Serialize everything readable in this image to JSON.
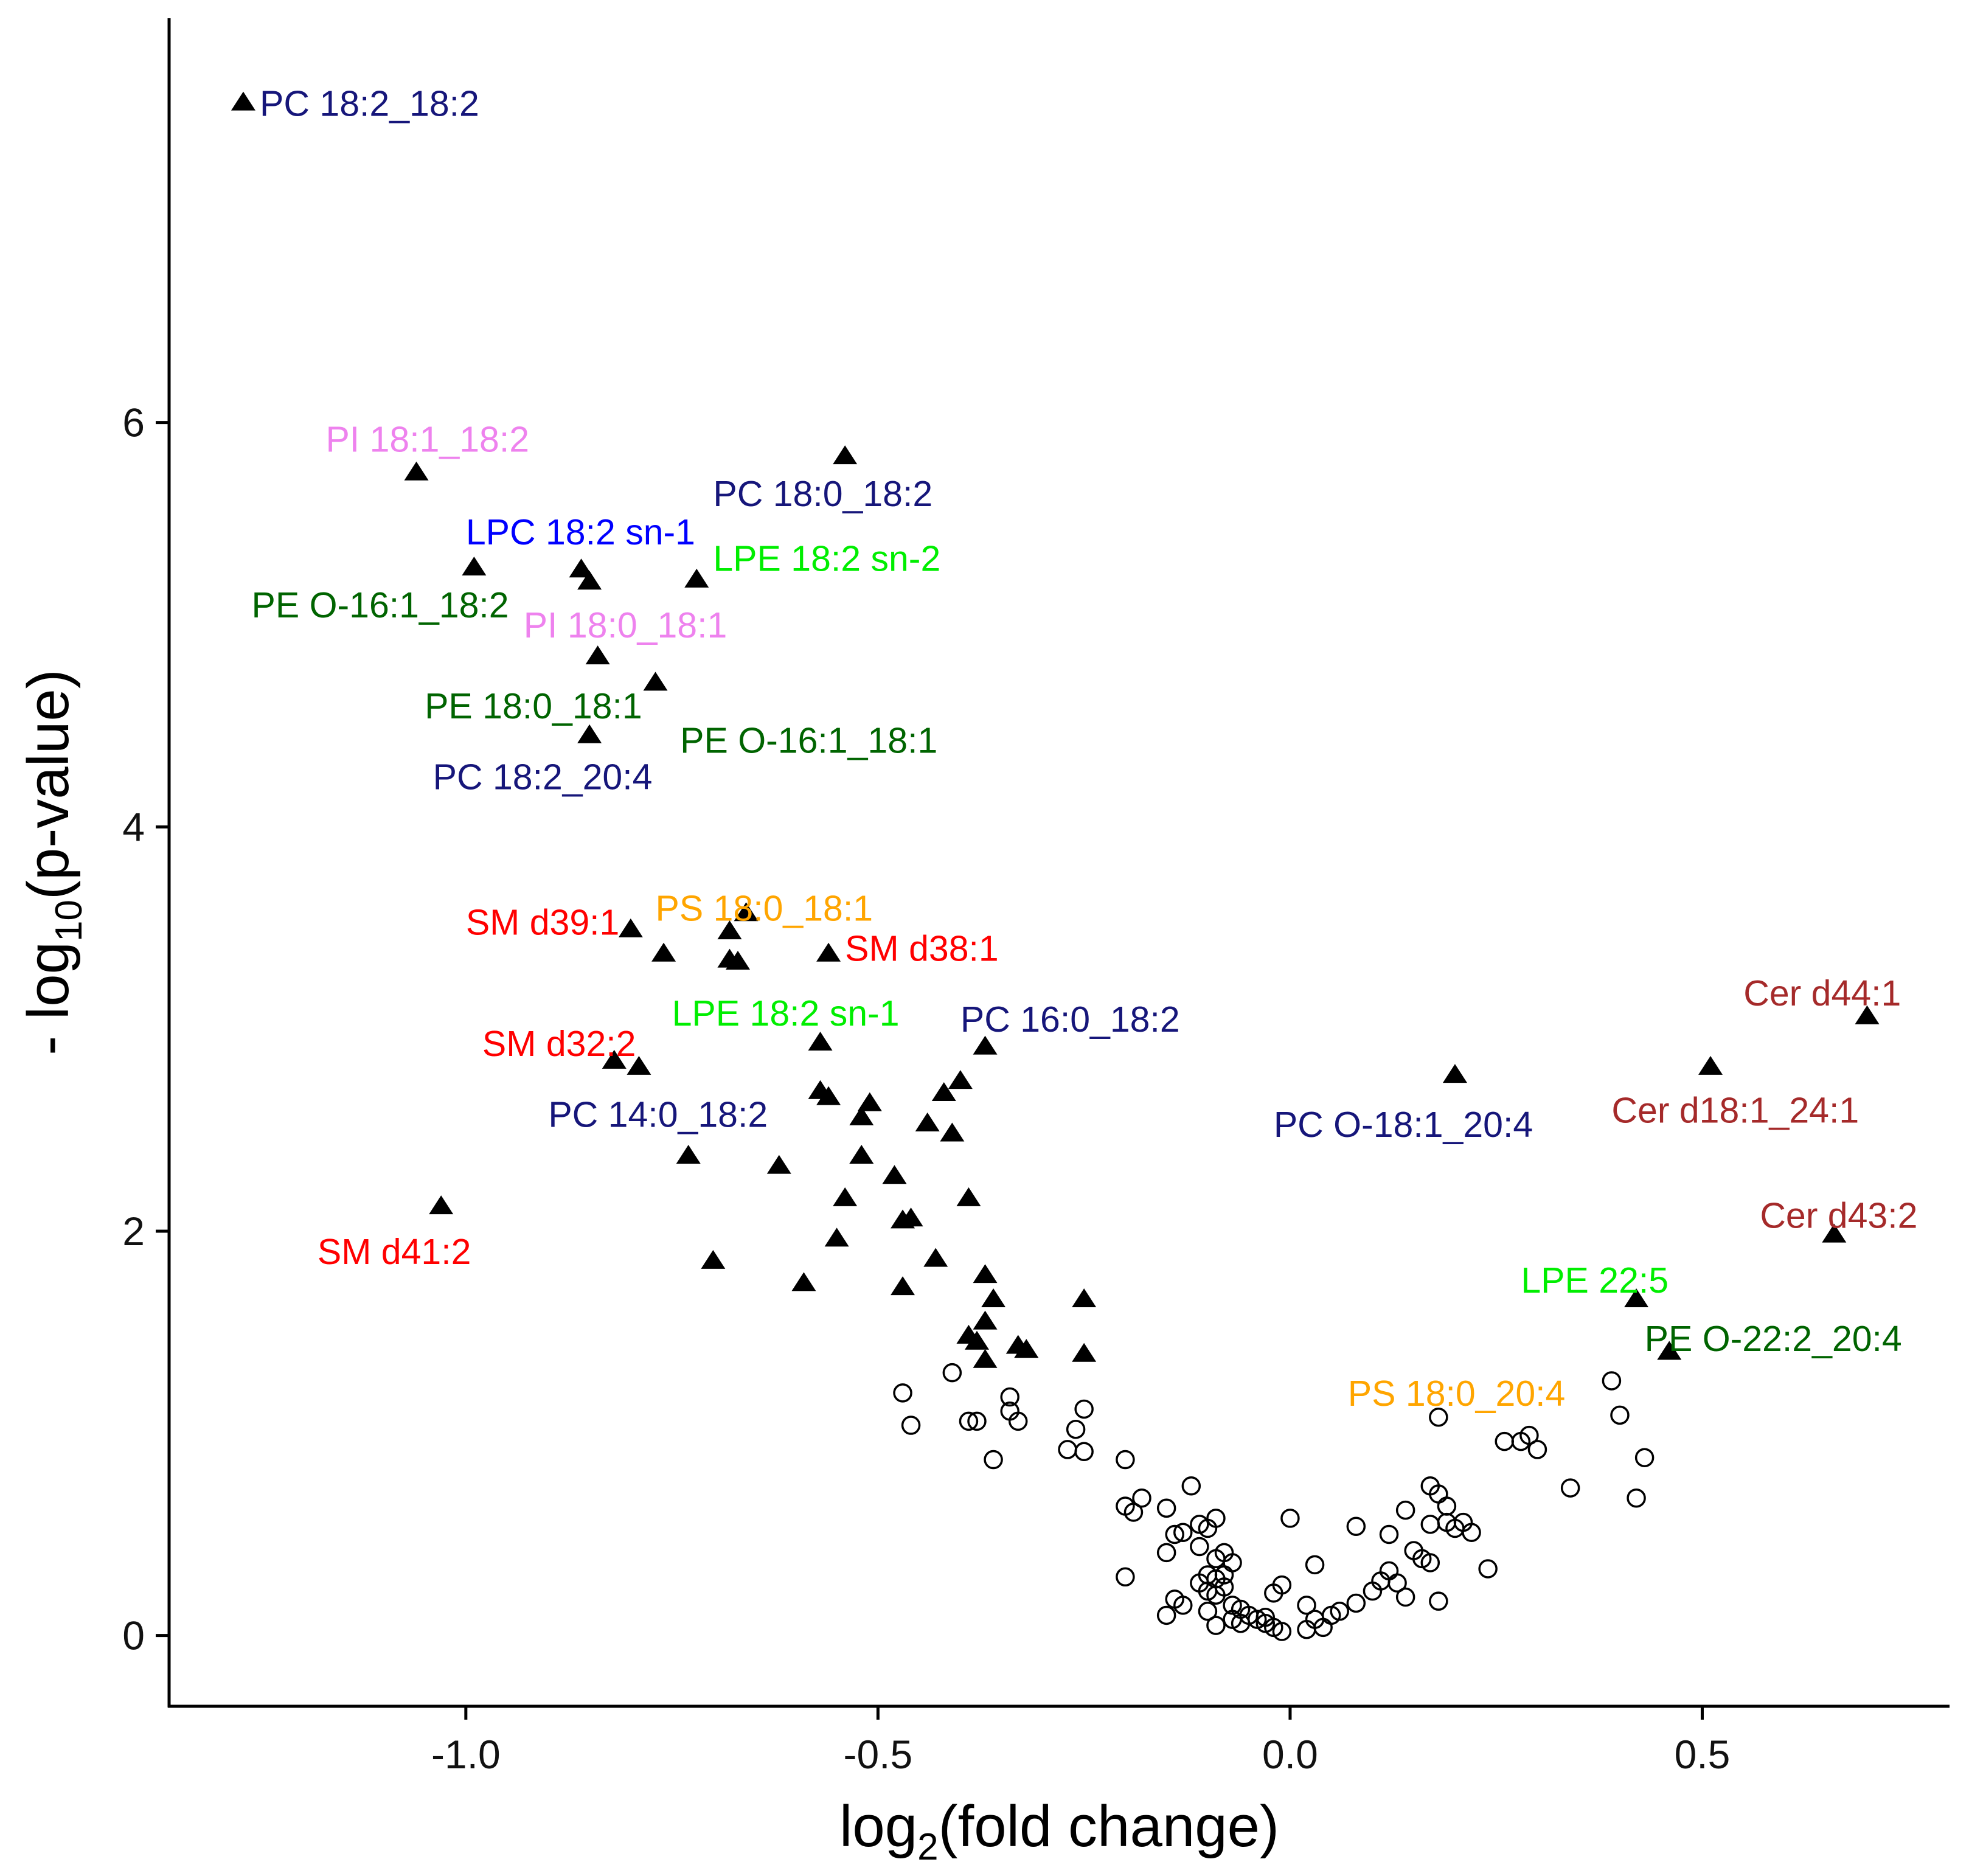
{
  "chart_data": {
    "type": "scatter",
    "title": "",
    "xlabel": {
      "main": "log",
      "sub": "2",
      "rest": "(fold change)"
    },
    "ylabel": {
      "main": "- log",
      "sub": "10",
      "rest": "(p-value)"
    },
    "xlim": [
      -1.36,
      0.8
    ],
    "ylim": [
      -0.35,
      8.0
    ],
    "xticks": [
      {
        "value": -1.0,
        "label": "-1.0"
      },
      {
        "value": -0.5,
        "label": "-0.5"
      },
      {
        "value": 0.0,
        "label": "0.0"
      },
      {
        "value": 0.5,
        "label": "0.5"
      }
    ],
    "yticks": [
      {
        "value": 0,
        "label": "0"
      },
      {
        "value": 2,
        "label": "2"
      },
      {
        "value": 4,
        "label": "4"
      },
      {
        "value": 6,
        "label": "6"
      }
    ],
    "grid": false,
    "legend": "none",
    "series": [
      {
        "marker": "filled-triangle",
        "color": "#000000",
        "points": [
          [
            -1.27,
            7.58
          ],
          [
            -1.06,
            5.75
          ],
          [
            -0.99,
            5.28
          ],
          [
            -0.86,
            5.27
          ],
          [
            -0.85,
            5.21
          ],
          [
            -0.72,
            5.22
          ],
          [
            -0.54,
            5.83
          ],
          [
            -0.84,
            4.84
          ],
          [
            -0.77,
            4.71
          ],
          [
            -0.85,
            4.45
          ],
          [
            -0.8,
            3.49
          ],
          [
            -0.76,
            3.37
          ],
          [
            -0.68,
            3.48
          ],
          [
            -0.66,
            3.57
          ],
          [
            -0.68,
            3.34
          ],
          [
            -0.67,
            3.33
          ],
          [
            -0.56,
            3.37
          ],
          [
            -0.57,
            2.93
          ],
          [
            -0.82,
            2.84
          ],
          [
            -0.79,
            2.81
          ],
          [
            -0.57,
            2.69
          ],
          [
            -0.56,
            2.66
          ],
          [
            -0.51,
            2.63
          ],
          [
            -0.52,
            2.56
          ],
          [
            -0.37,
            2.91
          ],
          [
            -0.4,
            2.74
          ],
          [
            -0.42,
            2.68
          ],
          [
            -0.44,
            2.53
          ],
          [
            -0.41,
            2.48
          ],
          [
            -0.73,
            2.37
          ],
          [
            -0.62,
            2.32
          ],
          [
            -0.52,
            2.37
          ],
          [
            -0.48,
            2.27
          ],
          [
            -0.54,
            2.16
          ],
          [
            -0.39,
            2.16
          ],
          [
            -1.03,
            2.12
          ],
          [
            -0.47,
            2.05
          ],
          [
            -0.46,
            2.06
          ],
          [
            -0.55,
            1.96
          ],
          [
            -0.7,
            1.85
          ],
          [
            -0.43,
            1.86
          ],
          [
            -0.59,
            1.74
          ],
          [
            -0.47,
            1.72
          ],
          [
            -0.37,
            1.78
          ],
          [
            -0.36,
            1.66
          ],
          [
            -0.25,
            1.66
          ],
          [
            -0.37,
            1.55
          ],
          [
            -0.39,
            1.48
          ],
          [
            -0.38,
            1.45
          ],
          [
            -0.33,
            1.43
          ],
          [
            -0.32,
            1.41
          ],
          [
            -0.25,
            1.39
          ],
          [
            -0.37,
            1.36
          ],
          [
            0.2,
            2.77
          ],
          [
            0.51,
            2.81
          ],
          [
            0.7,
            3.06
          ],
          [
            0.66,
            1.98
          ],
          [
            0.42,
            1.66
          ],
          [
            0.46,
            1.4
          ]
        ]
      },
      {
        "marker": "open-circle",
        "color": "#000000",
        "points": [
          [
            -0.47,
            1.2
          ],
          [
            -0.46,
            1.04
          ],
          [
            -0.41,
            1.3
          ],
          [
            -0.39,
            1.06
          ],
          [
            -0.38,
            1.06
          ],
          [
            -0.34,
            1.18
          ],
          [
            -0.34,
            1.11
          ],
          [
            -0.33,
            1.06
          ],
          [
            -0.36,
            0.87
          ],
          [
            -0.25,
            1.12
          ],
          [
            -0.26,
            1.02
          ],
          [
            -0.27,
            0.92
          ],
          [
            -0.25,
            0.91
          ],
          [
            -0.2,
            0.87
          ],
          [
            -0.2,
            0.64
          ],
          [
            -0.19,
            0.61
          ],
          [
            -0.18,
            0.68
          ],
          [
            -0.15,
            0.63
          ],
          [
            -0.14,
            0.5
          ],
          [
            -0.13,
            0.51
          ],
          [
            -0.12,
            0.74
          ],
          [
            -0.11,
            0.55
          ],
          [
            -0.1,
            0.53
          ],
          [
            -0.09,
            0.58
          ],
          [
            -0.11,
            0.44
          ],
          [
            -0.15,
            0.41
          ],
          [
            -0.08,
            0.41
          ],
          [
            -0.09,
            0.38
          ],
          [
            -0.07,
            0.36
          ],
          [
            -0.1,
            0.3
          ],
          [
            -0.09,
            0.28
          ],
          [
            -0.11,
            0.26
          ],
          [
            -0.08,
            0.3
          ],
          [
            -0.1,
            0.22
          ],
          [
            -0.08,
            0.24
          ],
          [
            -0.09,
            0.2
          ],
          [
            -0.07,
            0.15
          ],
          [
            -0.1,
            0.12
          ],
          [
            -0.06,
            0.13
          ],
          [
            -0.05,
            0.1
          ],
          [
            -0.04,
            0.08
          ],
          [
            -0.03,
            0.06
          ],
          [
            -0.02,
            0.04
          ],
          [
            -0.01,
            0.02
          ],
          [
            -0.03,
            0.09
          ],
          [
            -0.06,
            0.06
          ],
          [
            -0.07,
            0.08
          ],
          [
            -0.09,
            0.05
          ],
          [
            -0.13,
            0.15
          ],
          [
            -0.14,
            0.18
          ],
          [
            -0.15,
            0.1
          ],
          [
            -0.2,
            0.29
          ],
          [
            -0.01,
            0.25
          ],
          [
            -0.02,
            0.21
          ],
          [
            0.0,
            0.58
          ],
          [
            0.02,
            0.03
          ],
          [
            0.02,
            0.15
          ],
          [
            0.03,
            0.08
          ],
          [
            0.04,
            0.04
          ],
          [
            0.05,
            0.1
          ],
          [
            0.03,
            0.35
          ],
          [
            0.06,
            0.12
          ],
          [
            0.08,
            0.16
          ],
          [
            0.08,
            0.54
          ],
          [
            0.1,
            0.22
          ],
          [
            0.11,
            0.27
          ],
          [
            0.12,
            0.32
          ],
          [
            0.12,
            0.5
          ],
          [
            0.13,
            0.26
          ],
          [
            0.14,
            0.19
          ],
          [
            0.14,
            0.62
          ],
          [
            0.15,
            0.42
          ],
          [
            0.16,
            0.38
          ],
          [
            0.17,
            0.36
          ],
          [
            0.17,
            0.74
          ],
          [
            0.18,
            0.7
          ],
          [
            0.19,
            0.64
          ],
          [
            0.17,
            0.55
          ],
          [
            0.19,
            0.56
          ],
          [
            0.2,
            0.53
          ],
          [
            0.21,
            0.56
          ],
          [
            0.22,
            0.51
          ],
          [
            0.18,
            0.17
          ],
          [
            0.24,
            0.33
          ],
          [
            0.18,
            1.08
          ],
          [
            0.26,
            0.96
          ],
          [
            0.28,
            0.96
          ],
          [
            0.29,
            0.99
          ],
          [
            0.3,
            0.92
          ],
          [
            0.34,
            0.73
          ],
          [
            0.39,
            1.26
          ],
          [
            0.4,
            1.09
          ],
          [
            0.43,
            0.88
          ],
          [
            0.42,
            0.68
          ]
        ]
      }
    ],
    "annotations": [
      {
        "text": "PC 18:2_18:2",
        "x": -1.25,
        "y": 7.58,
        "anchor": "start",
        "color": "#16167a"
      },
      {
        "text": "PI 18:1_18:2",
        "x": -1.17,
        "y": 5.92,
        "anchor": "start",
        "color": "#ee82ee"
      },
      {
        "text": "PC 18:0_18:2",
        "x": -0.7,
        "y": 5.65,
        "anchor": "start",
        "color": "#16167a"
      },
      {
        "text": "LPC 18:2 sn-1",
        "x": -1.0,
        "y": 5.46,
        "anchor": "start",
        "color": "#0000ff"
      },
      {
        "text": "LPE 18:2 sn-2",
        "x": -0.7,
        "y": 5.33,
        "anchor": "start",
        "color": "#00ee00"
      },
      {
        "text": "PE O-16:1_18:2",
        "x": -1.26,
        "y": 5.1,
        "anchor": "start",
        "color": "#006400"
      },
      {
        "text": "PI 18:0_18:1",
        "x": -0.93,
        "y": 5.0,
        "anchor": "start",
        "color": "#ee82ee"
      },
      {
        "text": "PE 18:0_18:1",
        "x": -1.05,
        "y": 4.6,
        "anchor": "start",
        "color": "#006400"
      },
      {
        "text": "PE O-16:1_18:1",
        "x": -0.74,
        "y": 4.43,
        "anchor": "start",
        "color": "#006400"
      },
      {
        "text": "PC 18:2_20:4",
        "x": -1.04,
        "y": 4.25,
        "anchor": "start",
        "color": "#16167a"
      },
      {
        "text": "SM d39:1",
        "x": -1.0,
        "y": 3.53,
        "anchor": "start",
        "color": "#ff0000"
      },
      {
        "text": "PS 18:0_18:1",
        "x": -0.77,
        "y": 3.6,
        "anchor": "start",
        "color": "#ffa500"
      },
      {
        "text": "SM d38:1",
        "x": -0.54,
        "y": 3.4,
        "anchor": "start",
        "color": "#ff0000"
      },
      {
        "text": "LPE 18:2 sn-1",
        "x": -0.75,
        "y": 3.08,
        "anchor": "start",
        "color": "#00ee00"
      },
      {
        "text": "PC 16:0_18:2",
        "x": -0.4,
        "y": 3.05,
        "anchor": "start",
        "color": "#16167a"
      },
      {
        "text": "SM d32:2",
        "x": -0.98,
        "y": 2.93,
        "anchor": "start",
        "color": "#ff0000"
      },
      {
        "text": "PC 14:0_18:2",
        "x": -0.9,
        "y": 2.58,
        "anchor": "start",
        "color": "#16167a"
      },
      {
        "text": "PC O-18:1_20:4",
        "x": -0.02,
        "y": 2.53,
        "anchor": "start",
        "color": "#16167a"
      },
      {
        "text": "Cer d44:1",
        "x": 0.55,
        "y": 3.18,
        "anchor": "start",
        "color": "#a52a2a"
      },
      {
        "text": "Cer d18:1_24:1",
        "x": 0.39,
        "y": 2.6,
        "anchor": "start",
        "color": "#a52a2a"
      },
      {
        "text": "Cer d43:2",
        "x": 0.57,
        "y": 2.08,
        "anchor": "start",
        "color": "#a52a2a"
      },
      {
        "text": "SM d41:2",
        "x": -1.18,
        "y": 1.9,
        "anchor": "start",
        "color": "#ff0000"
      },
      {
        "text": "LPE 22:5",
        "x": 0.28,
        "y": 1.76,
        "anchor": "start",
        "color": "#00ee00"
      },
      {
        "text": "PE O-22:2_20:4",
        "x": 0.43,
        "y": 1.47,
        "anchor": "start",
        "color": "#006400"
      },
      {
        "text": "PS 18:0_20:4",
        "x": 0.07,
        "y": 1.2,
        "anchor": "start",
        "color": "#ffa500"
      }
    ]
  }
}
